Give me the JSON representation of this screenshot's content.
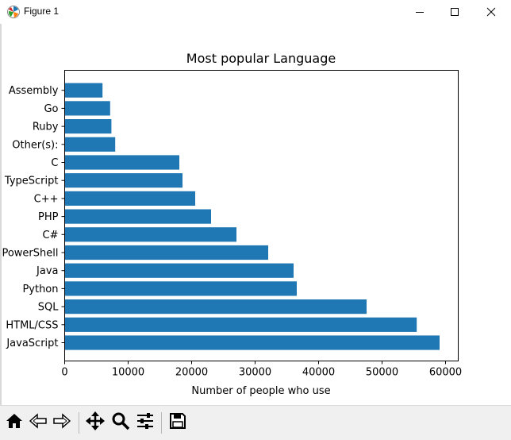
{
  "window": {
    "title": "Figure 1",
    "icons": [
      "matplotlib-icon",
      "minimize-icon",
      "maximize-icon",
      "close-icon"
    ]
  },
  "toolbar": {
    "icons": [
      "home-icon",
      "back-icon",
      "forward-icon",
      "pan-icon",
      "zoom-icon",
      "configure-subplots-icon",
      "save-icon"
    ]
  },
  "chart_data": {
    "type": "bar",
    "orientation": "horizontal",
    "title": "Most popular Language",
    "xlabel": "Number of people who use",
    "ylabel": "",
    "xlim": [
      0,
      62000
    ],
    "xticks": [
      "0",
      "10000",
      "20000",
      "30000",
      "40000",
      "50000",
      "60000"
    ],
    "xtick_values": [
      0,
      10000,
      20000,
      30000,
      40000,
      50000,
      60000
    ],
    "categories": [
      "JavaScript",
      "HTML/CSS",
      "SQL",
      "Python",
      "Java",
      "PowerShell",
      "C#",
      "PHP",
      "C++",
      "TypeScript",
      "C",
      "Other(s):",
      "Ruby",
      "Go",
      "Assembly"
    ],
    "values": [
      59000,
      55400,
      47500,
      36500,
      36000,
      32000,
      27000,
      23000,
      20500,
      18500,
      18000,
      7900,
      7300,
      7100,
      5900
    ],
    "bar_color": "#1f77b4",
    "grid": false
  }
}
